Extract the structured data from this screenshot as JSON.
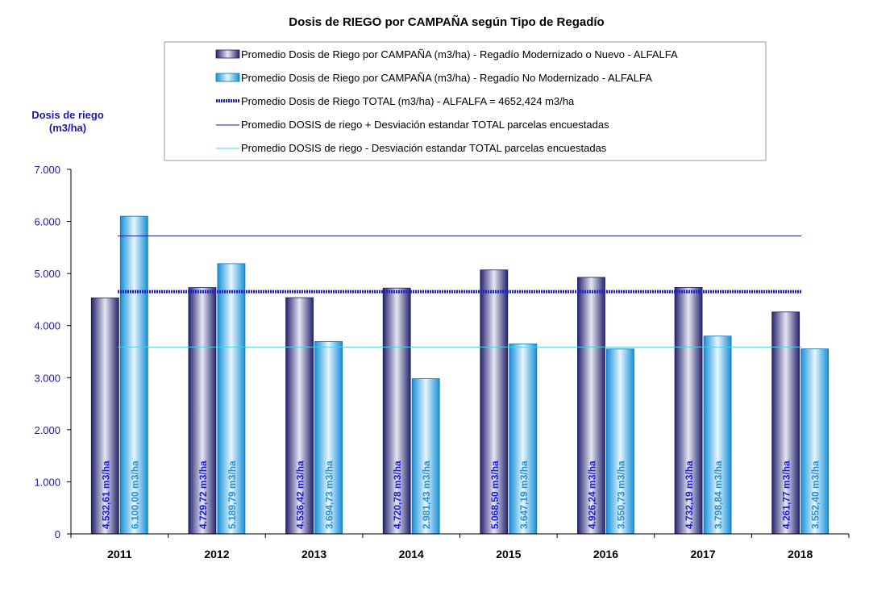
{
  "chart_data": {
    "type": "bar",
    "title": "Dosis de RIEGO por CAMPAÑA según Tipo de Regadío",
    "ylabel_line1": "Dosis de riego",
    "ylabel_line2": "(m3/ha)",
    "ylim": [
      0,
      7000
    ],
    "yticks": [
      0,
      1000,
      2000,
      3000,
      4000,
      5000,
      6000,
      7000
    ],
    "ytick_labels": [
      "0",
      "1.000",
      "2.000",
      "3.000",
      "4.000",
      "5.000",
      "6.000",
      "7.000"
    ],
    "categories": [
      "2011",
      "2012",
      "2013",
      "2014",
      "2015",
      "2016",
      "2017",
      "2018"
    ],
    "legend_placement": "top",
    "series": [
      {
        "name": "Promedio Dosis de Riego por CAMPAÑA (m3/ha) - Regadío Modernizado o Nuevo - ALFALFA",
        "color": "#3a3a8c",
        "label_color": "#1a1ae0",
        "values": [
          4532.61,
          4729.72,
          4536.42,
          4720.78,
          5068.5,
          4926.24,
          4732.19,
          4261.77
        ],
        "labels": [
          "4.532,61 m3/ha",
          "4.729,72 m3/ha",
          "4.536,42 m3/ha",
          "4.720,78 m3/ha",
          "5.068,50 m3/ha",
          "4.926,24 m3/ha",
          "4.732,19 m3/ha",
          "4.261,77 m3/ha"
        ]
      },
      {
        "name": "Promedio Dosis de Riego por CAMPAÑA (m3/ha) - Regadío No Modernizado - ALFALFA",
        "color": "#22a6e8",
        "label_color": "#2a8fd0",
        "values": [
          6100.0,
          5189.79,
          3694.73,
          2981.43,
          3647.19,
          3550.73,
          3798.84,
          3552.4
        ],
        "labels": [
          "6.100,00 m3/ha",
          "5.189,79 m3/ha",
          "3.694,73 m3/ha",
          "2.981,43 m3/ha",
          "3.647,19 m3/ha",
          "3.550,73 m3/ha",
          "3.798,84 m3/ha",
          "3.552,40 m3/ha"
        ]
      }
    ],
    "reference_lines": [
      {
        "name": "Promedio Dosis de Riego TOTAL (m3/ha) - ALFALFA = 4652,424 m3/ha",
        "value": 4652.424,
        "color": "#2020c8",
        "style": "thick-dotted"
      },
      {
        "name": "Promedio DOSIS de riego + Desviación estandar TOTAL parcelas encuestadas",
        "value": 5720,
        "color": "#1a1a8c",
        "style": "thin"
      },
      {
        "name": "Promedio DOSIS de riego - Desviación estandar TOTAL parcelas encuestadas",
        "value": 3590,
        "color": "#40d8e8",
        "style": "thin"
      }
    ]
  }
}
